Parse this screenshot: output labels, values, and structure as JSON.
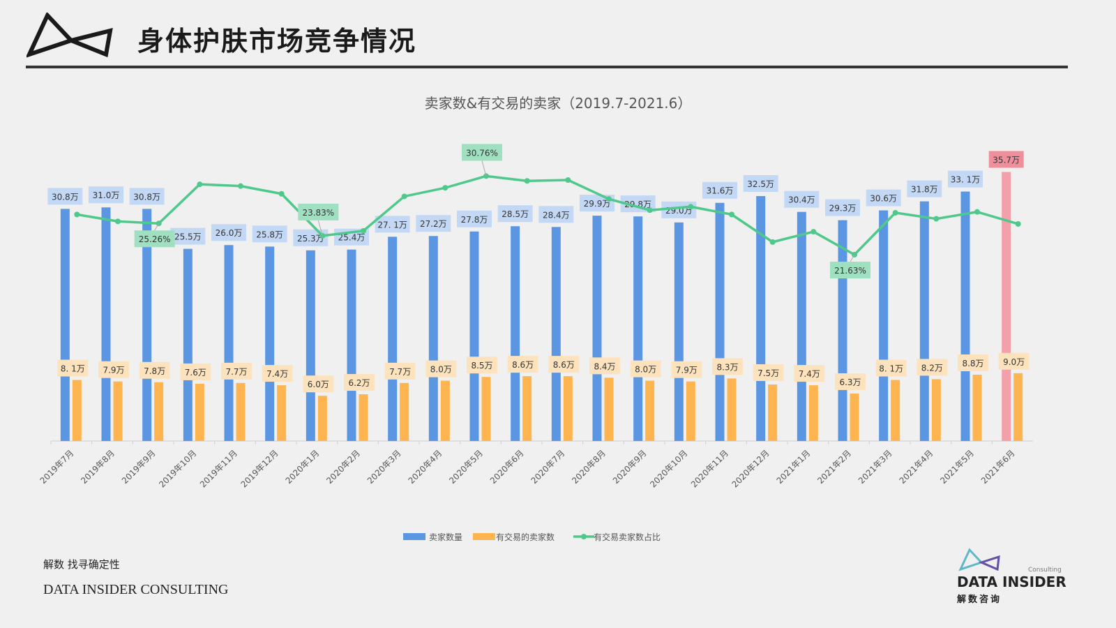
{
  "header": {
    "title": "身体护肤市场竞争情况"
  },
  "footer": {
    "slogan": "解数 找寻确定性",
    "company": "DATA INSIDER CONSULTING"
  },
  "brand_logo": {
    "name": "DATA INSIDER",
    "sub": "Consulting",
    "cn": "解数咨询"
  },
  "colors": {
    "blue": "#5b96e3",
    "orange": "#ffb54f",
    "green": "#4fc98b",
    "highlight_bar": "#f4a0aa",
    "blue_label": "#c3d8f4",
    "orange_label": "#fde3bd",
    "green_label": "#9fe0c0",
    "highlight_label": "#f08f9c"
  },
  "chart_data": {
    "type": "bar+line",
    "title": "卖家数&有交易的卖家（2019.7-2021.6）",
    "categories": [
      "2019年7月",
      "2019年8月",
      "2019年9月",
      "2019年10月",
      "2019年11月",
      "2019年12月",
      "2020年1月",
      "2020年2月",
      "2020年3月",
      "2020年4月",
      "2020年5月",
      "2020年6月",
      "2020年7月",
      "2020年8月",
      "2020年9月",
      "2020年10月",
      "2020年11月",
      "2020年12月",
      "2021年1月",
      "2021年2月",
      "2021年3月",
      "2021年4月",
      "2021年5月",
      "2021年6月"
    ],
    "ylim": [
      0,
      40
    ],
    "y2lim": [
      0,
      35
    ],
    "legend_position": "bottom",
    "grid": false,
    "series": [
      {
        "name": "卖家数量",
        "type": "bar",
        "unit": "万",
        "values": [
          30.8,
          31.0,
          30.8,
          25.5,
          26.0,
          25.8,
          25.3,
          25.4,
          27.1,
          27.2,
          27.8,
          28.5,
          28.4,
          29.9,
          29.8,
          29.0,
          31.6,
          32.5,
          30.4,
          29.3,
          30.6,
          31.8,
          33.1,
          35.7
        ],
        "labels": [
          "30.8万",
          "31.0万",
          "30.8万",
          "25.5万",
          "26.0万",
          "25.8万",
          "25.3万",
          "25.4万",
          "27. 1万",
          "27.2万",
          "27.8万",
          "28.5万",
          "28.4万",
          "29.9万",
          "29.8万",
          "29.0万",
          "31.6万",
          "32.5万",
          "30.4万",
          "29.3万",
          "30.6万",
          "31.8万",
          "33. 1万",
          "35.7万"
        ],
        "highlight_index": 23
      },
      {
        "name": "有交易的卖家数",
        "type": "bar",
        "unit": "万",
        "values": [
          8.1,
          7.9,
          7.8,
          7.6,
          7.7,
          7.4,
          6.0,
          6.2,
          7.7,
          8.0,
          8.5,
          8.6,
          8.6,
          8.4,
          8.0,
          7.9,
          8.3,
          7.5,
          7.4,
          6.3,
          8.1,
          8.2,
          8.8,
          9.0
        ],
        "labels": [
          "8. 1万",
          "7.9万",
          "7.8万",
          "7.6万",
          "7.7万",
          "7.4万",
          "6.0万",
          "6.2万",
          "7.7万",
          "8.0万",
          "8.5万",
          "8.6万",
          "8.6万",
          "8.4万",
          "8.0万",
          "7.9万",
          "8.3万",
          "7.5万",
          "7.4万",
          "6.3万",
          "8. 1万",
          "8.2万",
          "8.8万",
          "9.0万"
        ]
      },
      {
        "name": "有交易卖家数占比",
        "type": "line",
        "unit": "%",
        "values": [
          26.3,
          25.5,
          25.26,
          29.8,
          29.6,
          28.7,
          23.83,
          24.4,
          28.4,
          29.4,
          30.76,
          30.2,
          30.3,
          28.1,
          26.8,
          27.2,
          26.3,
          23.1,
          24.3,
          21.63,
          26.5,
          25.8,
          26.6,
          25.2
        ],
        "annotations": [
          {
            "index": 2,
            "label": "25.26%",
            "position": "below"
          },
          {
            "index": 6,
            "label": "23.83%",
            "position": "above"
          },
          {
            "index": 10,
            "label": "30.76%",
            "position": "above"
          },
          {
            "index": 19,
            "label": "21.63%",
            "position": "below"
          }
        ]
      }
    ]
  }
}
